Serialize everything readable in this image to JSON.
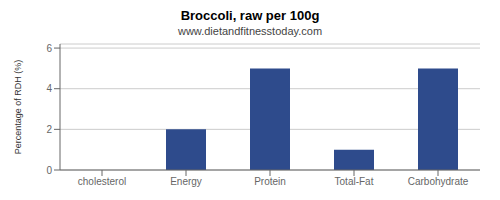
{
  "chart_data": {
    "type": "bar",
    "title": "Broccoli, raw per 100g",
    "subtitle": "www.dietandfitnesstoday.com",
    "categories": [
      "cholesterol",
      "Energy",
      "Protein",
      "Total-Fat",
      "Carbohydrate"
    ],
    "values": [
      0,
      2,
      5,
      1,
      5
    ],
    "color": "#2e4b8c",
    "ylabel": "Percentage of RDH (%)",
    "ylim": [
      0,
      6.2
    ],
    "yticks": [
      0,
      2,
      4,
      6
    ],
    "grid": true
  }
}
